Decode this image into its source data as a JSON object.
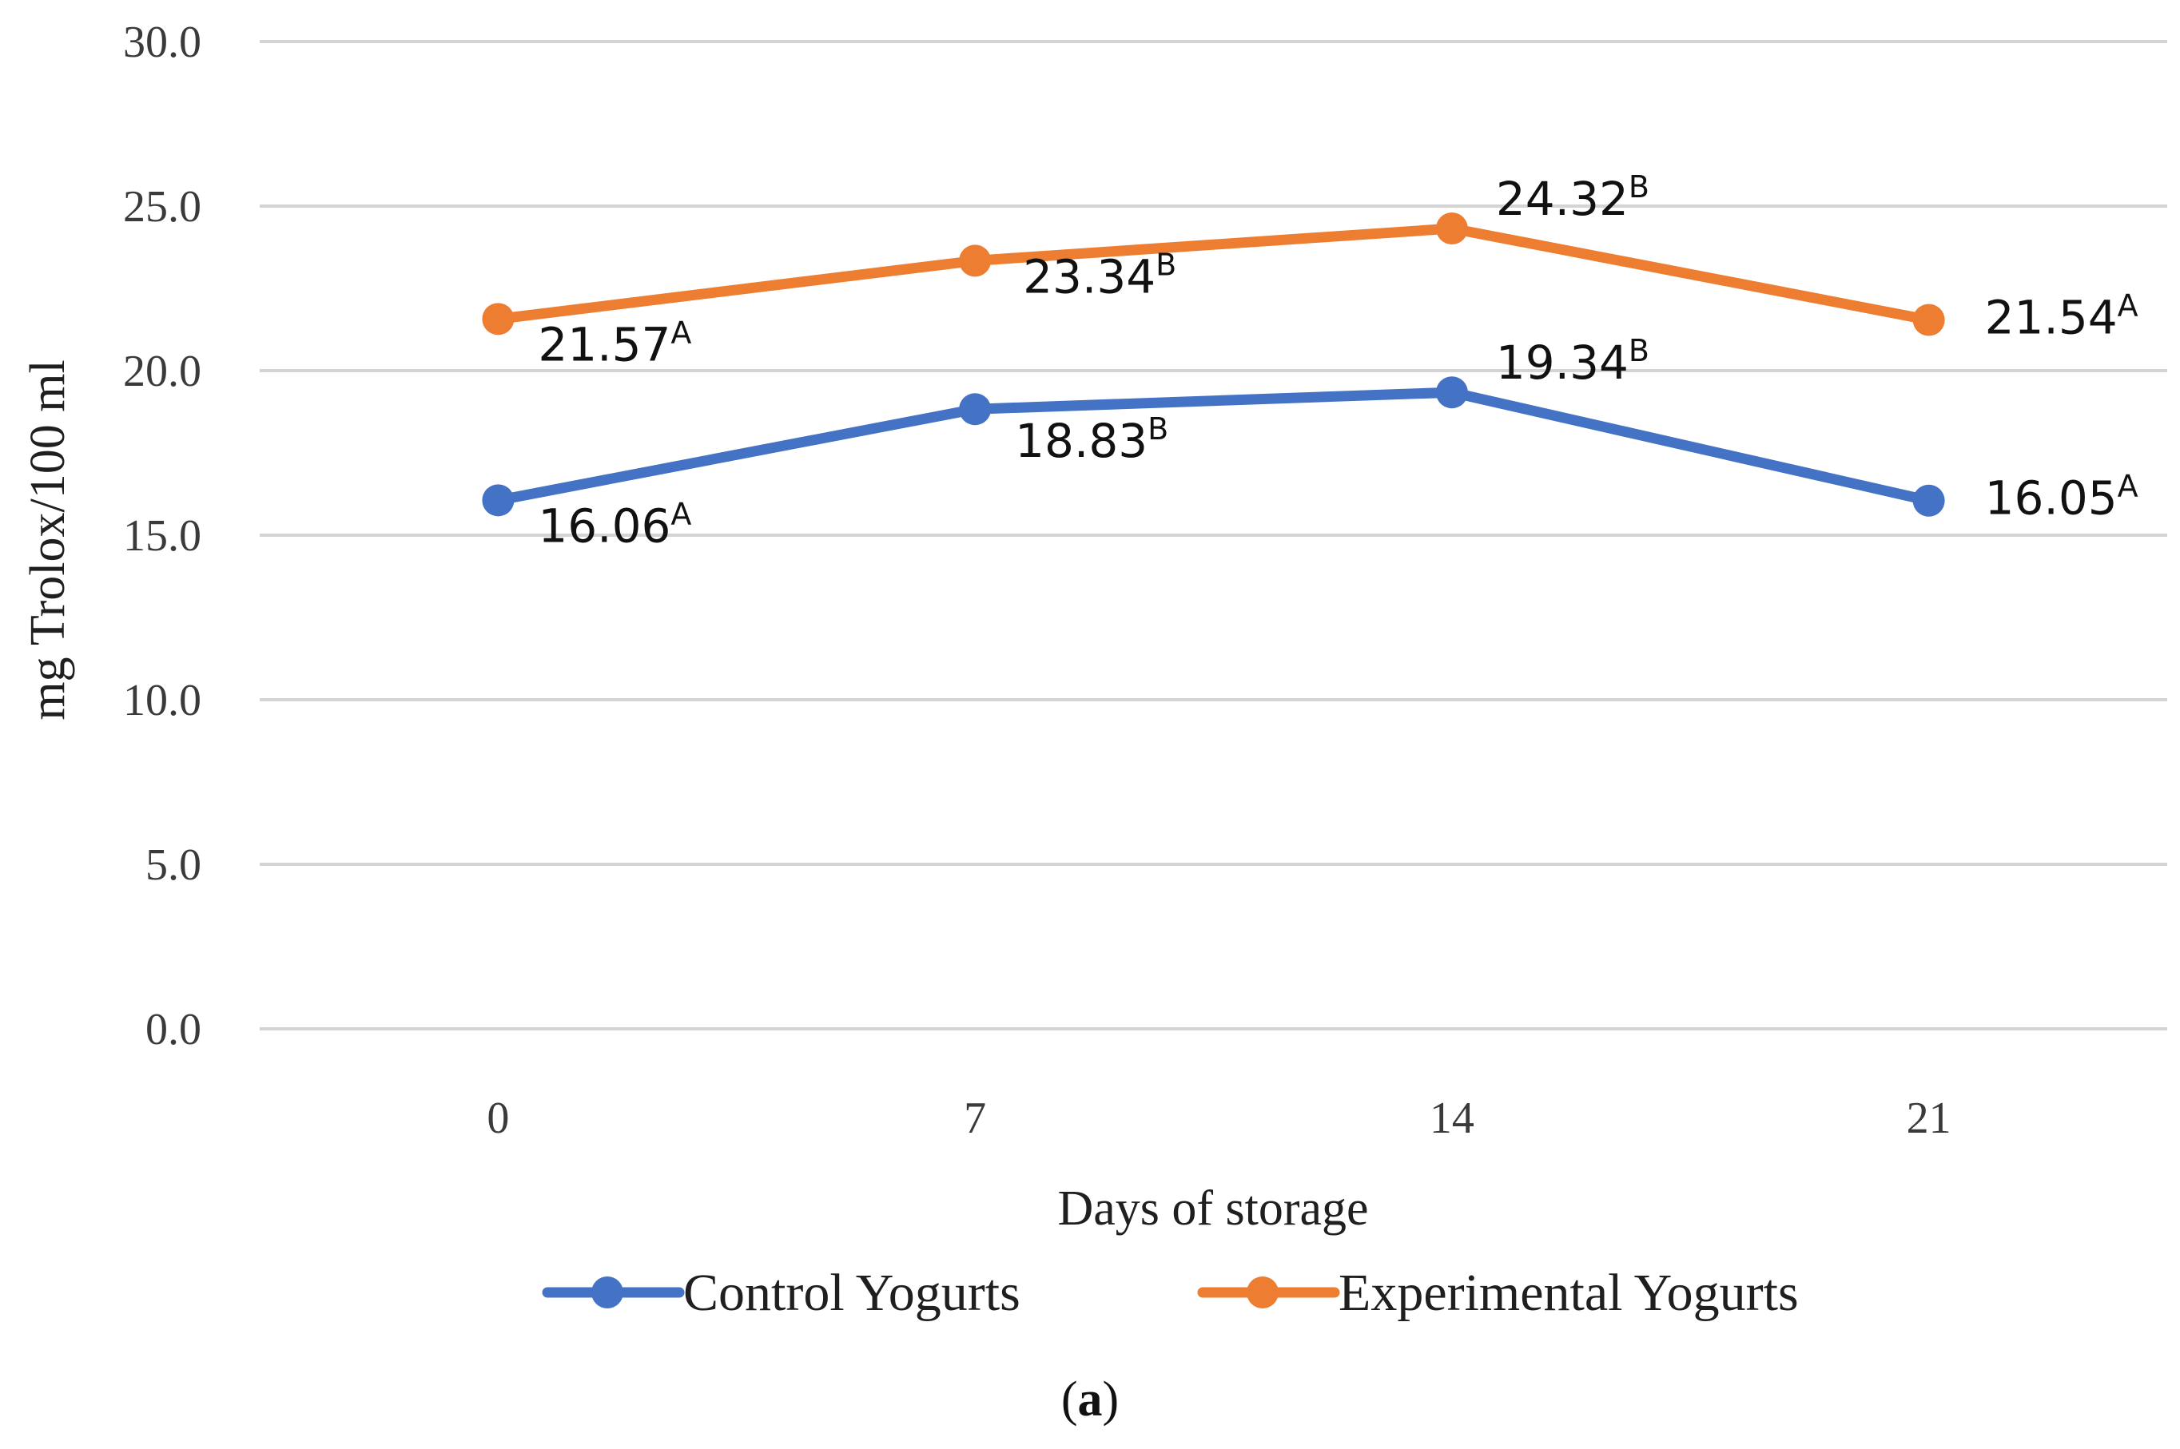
{
  "chart_data": {
    "type": "line",
    "title": "",
    "xlabel": "Days of storage",
    "ylabel": "mg Trolox/100 ml",
    "categories": [
      "0",
      "7",
      "14",
      "21"
    ],
    "y_ticks": [
      "0.0",
      "5.0",
      "10.0",
      "15.0",
      "20.0",
      "25.0",
      "30.0"
    ],
    "ylim": [
      0,
      30
    ],
    "grid": true,
    "legend_position": "bottom",
    "series": [
      {
        "name": "Control Yogurts",
        "color": "#4472C4",
        "values": [
          16.06,
          18.83,
          19.34,
          16.05
        ],
        "labels": [
          "16.06",
          "18.83",
          "19.34",
          "16.05"
        ],
        "superscripts": [
          "A",
          "B",
          "B",
          "A"
        ]
      },
      {
        "name": "Experimental Yogurts",
        "color": "#ED7D31",
        "values": [
          21.57,
          23.34,
          24.32,
          21.54
        ],
        "labels": [
          "21.57",
          "23.34",
          "24.32",
          "21.54"
        ],
        "superscripts": [
          "A",
          "B",
          "B",
          "A"
        ]
      }
    ]
  },
  "caption": {
    "open": "(",
    "letter": "a",
    "close": ")"
  }
}
